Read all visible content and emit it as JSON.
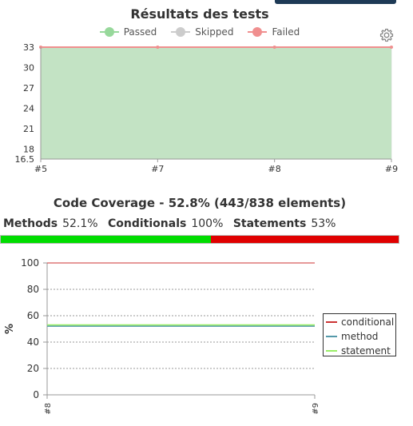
{
  "tests": {
    "title": "Résultats des tests",
    "legend": [
      {
        "label": "Passed",
        "color": "#97d89b"
      },
      {
        "label": "Skipped",
        "color": "#cccccc"
      },
      {
        "label": "Failed",
        "color": "#f08f8f"
      }
    ],
    "settings_icon": "gear-icon"
  },
  "coverage": {
    "title": "Code Coverage - 52.8% (443/838 elements)",
    "methods_label": "Methods",
    "methods_value": "52.1%",
    "conditionals_label": "Conditionals",
    "conditionals_value": "100%",
    "statements_label": "Statements",
    "statements_value": "53%",
    "bar_fraction": 0.528,
    "bar_colors": {
      "covered": "#00dd00",
      "missed": "#e00000"
    }
  },
  "chart_data": [
    {
      "type": "area",
      "title": "Résultats des tests",
      "categories": [
        "#5",
        "#7",
        "#8",
        "#9"
      ],
      "y_ticks": [
        16.5,
        18,
        21,
        24,
        27,
        30,
        33
      ],
      "ylim": [
        16.5,
        33
      ],
      "grid": true,
      "series": [
        {
          "name": "Passed",
          "values": [
            33,
            33,
            33,
            33
          ],
          "color": "#c3e3c4"
        },
        {
          "name": "Skipped",
          "values": [
            0,
            0,
            0,
            0
          ],
          "color": "#cccccc"
        },
        {
          "name": "Failed",
          "values": [
            0,
            0,
            0,
            0
          ],
          "color": "#f08f8f"
        }
      ]
    },
    {
      "type": "line",
      "categories": [
        "#8",
        "#9"
      ],
      "ylabel": "%",
      "y_ticks": [
        0,
        20,
        40,
        60,
        80,
        100
      ],
      "ylim": [
        0,
        100
      ],
      "grid": true,
      "legend_position": "right",
      "series": [
        {
          "name": "conditional",
          "values": [
            100,
            100
          ],
          "color": "#cc3333"
        },
        {
          "name": "method",
          "values": [
            52.1,
            52.1
          ],
          "color": "#5599aa"
        },
        {
          "name": "statement",
          "values": [
            53,
            53
          ],
          "color": "#99ee66"
        }
      ]
    }
  ]
}
